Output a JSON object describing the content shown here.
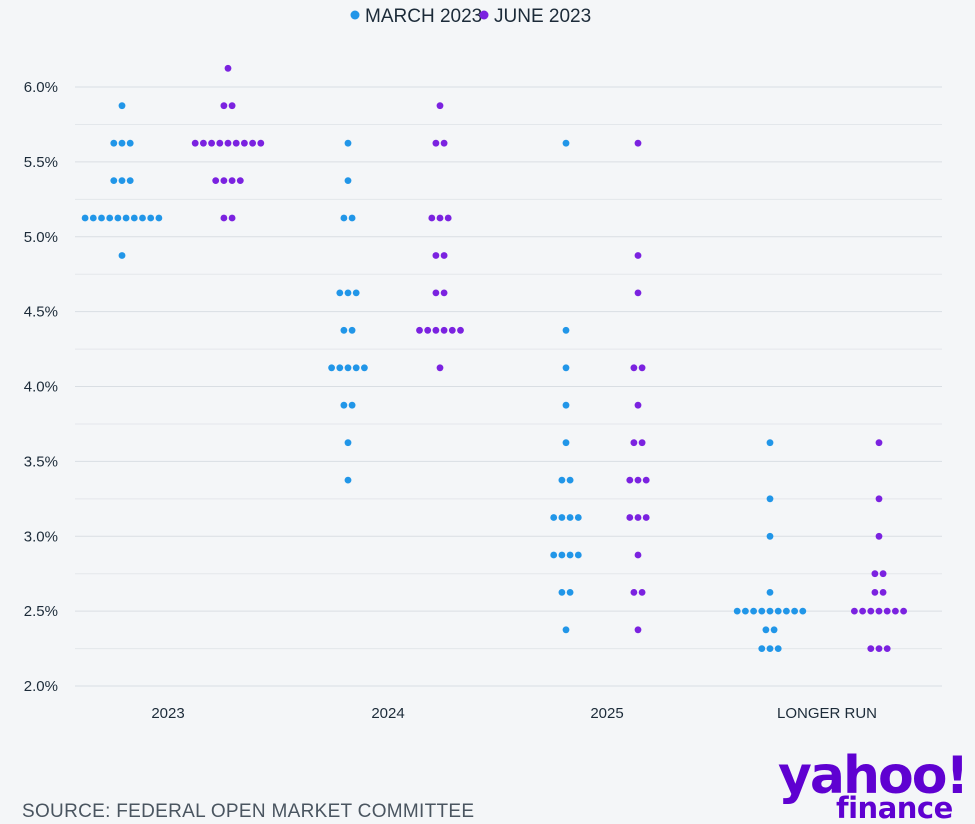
{
  "brand": {
    "name": "yahoo!",
    "sub": "finance",
    "color": "#5f01d1"
  },
  "source": "SOURCE: FEDERAL OPEN MARKET COMMITTEE",
  "chart_data": {
    "type": "scatter",
    "subtype": "dot-plot",
    "title": "",
    "xlabel": "",
    "ylabel": "",
    "ylim": [
      2.0,
      6.0
    ],
    "y_ticks": [
      2.0,
      2.5,
      3.0,
      3.5,
      4.0,
      4.5,
      5.0,
      5.5,
      6.0
    ],
    "y_tick_labels": [
      "2.0%",
      "2.5%",
      "3.0%",
      "3.5%",
      "4.0%",
      "4.5%",
      "5.0%",
      "5.5%",
      "6.0%"
    ],
    "grid": true,
    "legend_position": "top-center",
    "categories": [
      "2023",
      "2024",
      "2025",
      "LONGER RUN"
    ],
    "series": [
      {
        "name": "MARCH 2023",
        "color": "#2196e8",
        "groups": [
          [
            {
              "rate": 5.875,
              "count": 1
            },
            {
              "rate": 5.625,
              "count": 3
            },
            {
              "rate": 5.375,
              "count": 3
            },
            {
              "rate": 5.125,
              "count": 10
            },
            {
              "rate": 4.875,
              "count": 1
            }
          ],
          [
            {
              "rate": 5.625,
              "count": 1
            },
            {
              "rate": 5.375,
              "count": 1
            },
            {
              "rate": 5.125,
              "count": 2
            },
            {
              "rate": 4.625,
              "count": 3
            },
            {
              "rate": 4.375,
              "count": 2
            },
            {
              "rate": 4.125,
              "count": 5
            },
            {
              "rate": 3.875,
              "count": 2
            },
            {
              "rate": 3.625,
              "count": 1
            },
            {
              "rate": 3.375,
              "count": 1
            }
          ],
          [
            {
              "rate": 5.625,
              "count": 1
            },
            {
              "rate": 4.375,
              "count": 1
            },
            {
              "rate": 4.125,
              "count": 1
            },
            {
              "rate": 3.875,
              "count": 1
            },
            {
              "rate": 3.625,
              "count": 1
            },
            {
              "rate": 3.375,
              "count": 2
            },
            {
              "rate": 3.125,
              "count": 4
            },
            {
              "rate": 2.875,
              "count": 4
            },
            {
              "rate": 2.625,
              "count": 2
            },
            {
              "rate": 2.375,
              "count": 1
            }
          ],
          [
            {
              "rate": 3.625,
              "count": 1
            },
            {
              "rate": 3.25,
              "count": 1
            },
            {
              "rate": 3.0,
              "count": 1
            },
            {
              "rate": 2.625,
              "count": 1
            },
            {
              "rate": 2.5,
              "count": 9
            },
            {
              "rate": 2.375,
              "count": 2
            },
            {
              "rate": 2.25,
              "count": 3
            }
          ]
        ]
      },
      {
        "name": "JUNE 2023",
        "color": "#7b22e0",
        "groups": [
          [
            {
              "rate": 6.125,
              "count": 1
            },
            {
              "rate": 5.875,
              "count": 2
            },
            {
              "rate": 5.625,
              "count": 9
            },
            {
              "rate": 5.375,
              "count": 4
            },
            {
              "rate": 5.125,
              "count": 2
            }
          ],
          [
            {
              "rate": 5.875,
              "count": 1
            },
            {
              "rate": 5.625,
              "count": 2
            },
            {
              "rate": 5.125,
              "count": 3
            },
            {
              "rate": 4.875,
              "count": 2
            },
            {
              "rate": 4.625,
              "count": 2
            },
            {
              "rate": 4.375,
              "count": 6
            },
            {
              "rate": 4.125,
              "count": 1
            }
          ],
          [
            {
              "rate": 5.625,
              "count": 1
            },
            {
              "rate": 4.875,
              "count": 1
            },
            {
              "rate": 4.625,
              "count": 1
            },
            {
              "rate": 4.125,
              "count": 2
            },
            {
              "rate": 3.875,
              "count": 1
            },
            {
              "rate": 3.625,
              "count": 2
            },
            {
              "rate": 3.375,
              "count": 3
            },
            {
              "rate": 3.125,
              "count": 3
            },
            {
              "rate": 2.875,
              "count": 1
            },
            {
              "rate": 2.625,
              "count": 2
            },
            {
              "rate": 2.375,
              "count": 1
            }
          ],
          [
            {
              "rate": 3.625,
              "count": 1
            },
            {
              "rate": 3.25,
              "count": 1
            },
            {
              "rate": 3.0,
              "count": 1
            },
            {
              "rate": 2.75,
              "count": 2
            },
            {
              "rate": 2.625,
              "count": 2
            },
            {
              "rate": 2.5,
              "count": 7
            },
            {
              "rate": 2.25,
              "count": 3
            }
          ]
        ]
      }
    ]
  }
}
